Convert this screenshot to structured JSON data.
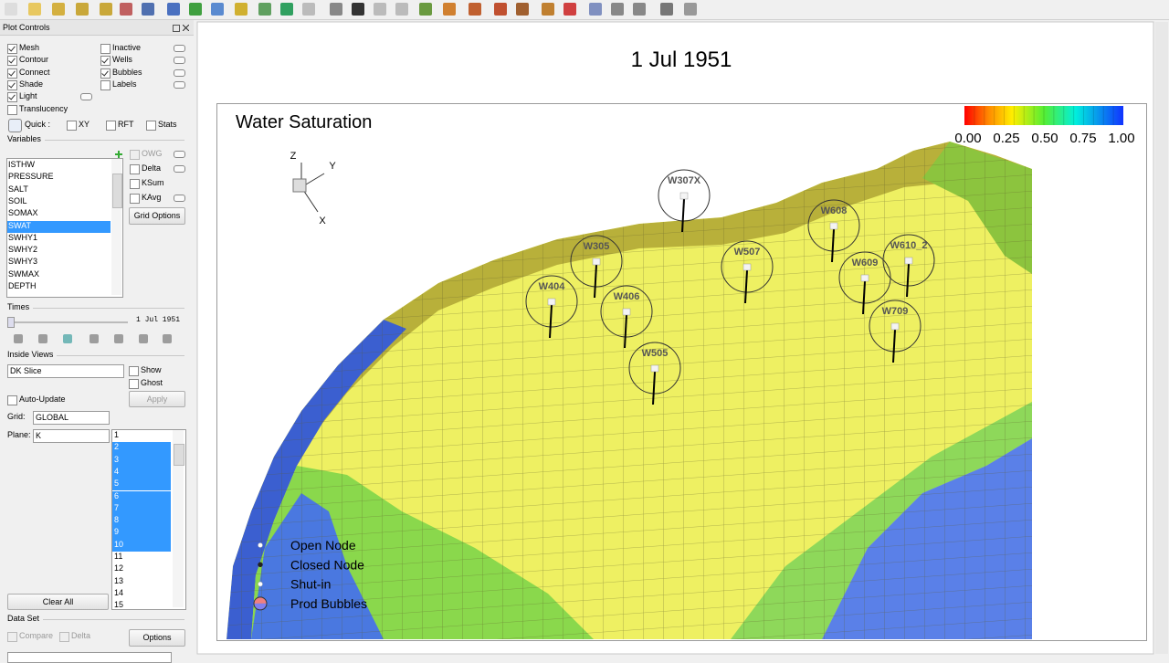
{
  "plot_controls": {
    "title": "Plot Controls",
    "display_options": [
      {
        "label": "Mesh",
        "checked": true
      },
      {
        "label": "Contour",
        "checked": true
      },
      {
        "label": "Connect",
        "checked": true
      },
      {
        "label": "Shade",
        "checked": true
      },
      {
        "label": "Light",
        "checked": true
      },
      {
        "label": "Translucency",
        "checked": false
      },
      {
        "label": "Inactive",
        "checked": false
      },
      {
        "label": "Wells",
        "checked": true
      },
      {
        "label": "Bubbles",
        "checked": true
      },
      {
        "label": "Labels",
        "checked": false
      }
    ],
    "quick": {
      "label": "Quick :",
      "options": [
        {
          "label": "XY",
          "checked": false
        },
        {
          "label": "RFT",
          "checked": false
        },
        {
          "label": "Stats",
          "checked": false
        }
      ]
    },
    "variables": {
      "heading": "Variables",
      "items": [
        "ISTHW",
        "PRESSURE",
        "SALT",
        "SOIL",
        "SOMAX",
        "SWAT",
        "SWHY1",
        "SWHY2",
        "SWHY3",
        "SWMAX",
        "DEPTH"
      ],
      "selected_index": 5,
      "options": [
        {
          "label": "OWG",
          "checked": false
        },
        {
          "label": "Delta",
          "checked": false
        },
        {
          "label": "KSum",
          "checked": false
        },
        {
          "label": "KAvg",
          "checked": false
        }
      ],
      "button": "Grid Options"
    },
    "times": {
      "heading": "Times",
      "current": "1 Jul 1951"
    },
    "inside_views": {
      "heading": "Inside Views",
      "view": "DK Slice",
      "options": [
        {
          "label": "Show",
          "checked": false
        },
        {
          "label": "Ghost",
          "checked": false
        }
      ],
      "button": "Apply",
      "auto_update": {
        "label": "Auto-Update",
        "checked": false
      }
    },
    "grid": {
      "label": "Grid:",
      "value": "GLOBAL"
    },
    "plane": {
      "label": "Plane:",
      "value": "K",
      "items": [
        {
          "label": "1",
          "selected": false
        },
        {
          "label": "2",
          "selected": true
        },
        {
          "label": "3",
          "selected": true
        },
        {
          "label": "4",
          "selected": true
        },
        {
          "label": "5",
          "selected": true
        },
        {
          "label": "6",
          "selected": true
        },
        {
          "label": "7",
          "selected": true
        },
        {
          "label": "8",
          "selected": true
        },
        {
          "label": "9",
          "selected": true
        },
        {
          "label": "10",
          "selected": true
        },
        {
          "label": "11",
          "selected": false
        },
        {
          "label": "12",
          "selected": false
        },
        {
          "label": "13",
          "selected": false
        },
        {
          "label": "14",
          "selected": false
        },
        {
          "label": "15",
          "selected": false
        }
      ]
    },
    "clear_button": "Clear All",
    "data_set": {
      "heading": "Data Set",
      "options": [
        {
          "label": "Compare",
          "checked": false
        },
        {
          "label": "Delta",
          "checked": false
        }
      ],
      "button": "Options"
    }
  },
  "view": {
    "title": "1 Jul 1951",
    "plot_title": "Water Saturation",
    "colorbar_labels": [
      "0.00",
      "0.25",
      "0.50",
      "0.75",
      "1.00"
    ],
    "axes": [
      "Z",
      "Y",
      "X"
    ],
    "wells": [
      "W307X",
      "W305",
      "W404",
      "W406",
      "W505",
      "W507",
      "W608",
      "W609",
      "W610_2",
      "W709"
    ],
    "legend": [
      "Open Node",
      "Closed Node",
      "Shut-in",
      "Prod Bubbles"
    ]
  }
}
